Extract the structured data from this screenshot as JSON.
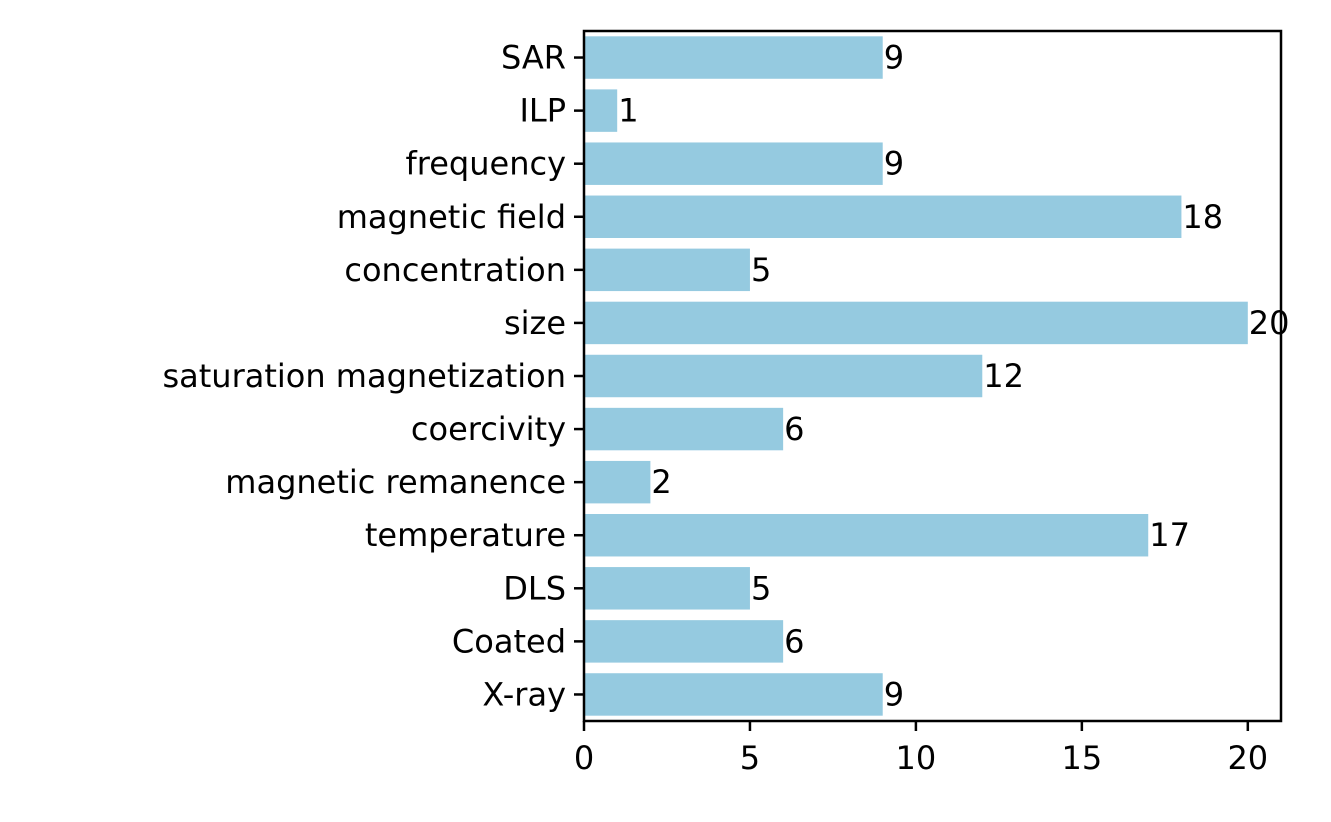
{
  "chart_data": {
    "type": "bar",
    "orientation": "horizontal",
    "title": "",
    "xlabel": "",
    "ylabel": "",
    "categories": [
      "SAR",
      "ILP",
      "frequency",
      "magnetic field",
      "concentration",
      "size",
      "saturation magnetization",
      "coercivity",
      "magnetic remanence",
      "temperature",
      "DLS",
      "Coated",
      "X-ray"
    ],
    "values": [
      9,
      1,
      9,
      18,
      5,
      20,
      12,
      6,
      2,
      17,
      5,
      6,
      9
    ],
    "xlim": [
      0,
      21
    ],
    "xticks": [
      0,
      5,
      10,
      15,
      20
    ],
    "xtick_labels": [
      "0",
      "5",
      "10",
      "15",
      "20"
    ],
    "bar_color": "#95cae0",
    "data_labels": true,
    "grid": false,
    "legend": "none"
  }
}
